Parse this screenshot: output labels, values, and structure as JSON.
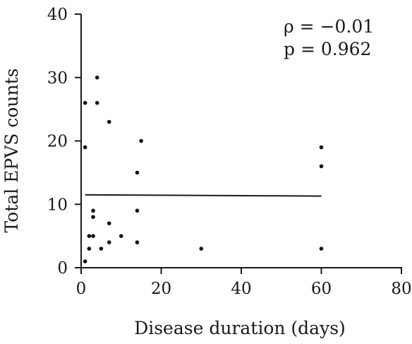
{
  "chart_data": {
    "type": "scatter",
    "title": "",
    "xlabel": "Disease duration (days)",
    "ylabel": "Total EPVS counts",
    "xlim": [
      0,
      80
    ],
    "ylim": [
      0,
      40
    ],
    "xticks": [
      0,
      20,
      40,
      60,
      80
    ],
    "yticks": [
      0,
      10,
      20,
      30,
      40
    ],
    "grid": false,
    "points": [
      {
        "x": 1,
        "y": 26
      },
      {
        "x": 1,
        "y": 19
      },
      {
        "x": 1,
        "y": 1
      },
      {
        "x": 2,
        "y": 3
      },
      {
        "x": 2,
        "y": 5
      },
      {
        "x": 3,
        "y": 9
      },
      {
        "x": 3,
        "y": 8
      },
      {
        "x": 3,
        "y": 5
      },
      {
        "x": 4,
        "y": 30
      },
      {
        "x": 4,
        "y": 26
      },
      {
        "x": 5,
        "y": 3
      },
      {
        "x": 7,
        "y": 23
      },
      {
        "x": 7,
        "y": 7
      },
      {
        "x": 7,
        "y": 4
      },
      {
        "x": 10,
        "y": 5
      },
      {
        "x": 14,
        "y": 15
      },
      {
        "x": 14,
        "y": 9
      },
      {
        "x": 14,
        "y": 4
      },
      {
        "x": 15,
        "y": 20
      },
      {
        "x": 30,
        "y": 3
      },
      {
        "x": 60,
        "y": 19
      },
      {
        "x": 60,
        "y": 16
      },
      {
        "x": 60,
        "y": 3
      }
    ],
    "regression_line": {
      "x": [
        1,
        60
      ],
      "y": [
        11.5,
        11.3
      ]
    },
    "annotations": {
      "rho": "ρ = −0.01",
      "p": "p = 0.962"
    }
  }
}
